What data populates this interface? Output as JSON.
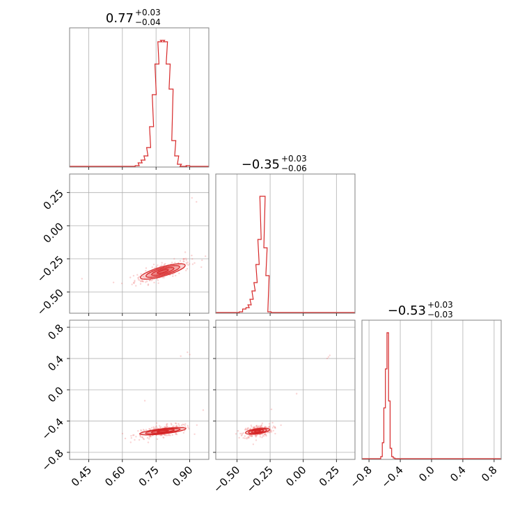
{
  "colors": {
    "series": "#d62728",
    "grid": "#b0b0b0",
    "frame": "#808080",
    "text": "#000000",
    "scatter": "#f08080"
  },
  "chart_data": {
    "type": "corner",
    "parameters": 3,
    "grid": true,
    "titles": [
      {
        "median": "0.77",
        "plus": "+0.03",
        "minus": "−0.04"
      },
      {
        "median": "−0.35",
        "plus": "+0.03",
        "minus": "−0.06"
      },
      {
        "median": "−0.53",
        "plus": "+0.03",
        "minus": "−0.03"
      }
    ],
    "ranges": [
      [
        0.365,
        0.985
      ],
      [
        -0.66,
        0.39
      ],
      [
        -0.89,
        0.89
      ]
    ],
    "ticks": [
      {
        "values": [
          0.45,
          0.6,
          0.75,
          0.9
        ],
        "labels": [
          "0.45",
          "0.60",
          "0.75",
          "0.90"
        ]
      },
      {
        "values": [
          -0.5,
          -0.25,
          0.0,
          0.25
        ],
        "labels": [
          "−0.50",
          "−0.25",
          "0.00",
          "0.25"
        ]
      },
      {
        "values": [
          -0.8,
          -0.4,
          0.0,
          0.4,
          0.8
        ],
        "labels": [
          "−0.8",
          "−0.4",
          "0.0",
          "0.4",
          "0.8"
        ]
      }
    ],
    "histograms": [
      {
        "name": "",
        "x": [
          0.63,
          0.648,
          0.666,
          0.679,
          0.692,
          0.705,
          0.717,
          0.73,
          0.742,
          0.754,
          0.767,
          0.779,
          0.792,
          0.804,
          0.817,
          0.829,
          0.842,
          0.854,
          0.866,
          0.879,
          0.891
        ],
        "y": [
          0.005,
          0.005,
          0.01,
          0.03,
          0.05,
          0.08,
          0.14,
          0.29,
          0.52,
          0.74,
          0.9,
          0.91,
          0.9,
          0.74,
          0.56,
          0.19,
          0.08,
          0.02,
          0.005,
          0.005,
          0.01
        ]
      },
      {
        "name": "",
        "x": [
          -0.47,
          -0.445,
          -0.42,
          -0.405,
          -0.39,
          -0.375,
          -0.36,
          -0.345,
          -0.33,
          -0.315,
          -0.3,
          -0.285,
          -0.27,
          -0.255
        ],
        "y": [
          0.01,
          0.03,
          0.04,
          0.06,
          0.1,
          0.16,
          0.22,
          0.35,
          0.53,
          0.84,
          0.84,
          0.47,
          0.27,
          0.01
        ]
      },
      {
        "name": "",
        "x": [
          -0.64,
          -0.62,
          -0.6,
          -0.58,
          -0.56,
          -0.54,
          -0.52,
          -0.5,
          -0.48
        ],
        "y": [
          0.02,
          0.12,
          0.37,
          0.65,
          0.91,
          0.42,
          0.08,
          0.02,
          0.01
        ]
      }
    ],
    "pairs": [
      {
        "row": 1,
        "col": 0,
        "center": [
          0.78,
          -0.345
        ],
        "spread": [
          0.045,
          0.032
        ],
        "rho": 0.75,
        "outliers": [
          [
            0.93,
            0.18
          ],
          [
            0.91,
            0.21
          ],
          [
            0.97,
            -0.23
          ],
          [
            0.42,
            -0.4
          ],
          [
            0.88,
            -0.2
          ]
        ]
      },
      {
        "row": 2,
        "col": 0,
        "center": [
          0.78,
          -0.53
        ],
        "spread": [
          0.045,
          0.03
        ],
        "rho": 0.55,
        "outliers": [
          [
            0.7,
            -0.14
          ],
          [
            0.86,
            0.43
          ],
          [
            0.9,
            0.45
          ],
          [
            0.96,
            -0.26
          ],
          [
            0.89,
            0.48
          ]
        ]
      },
      {
        "row": 2,
        "col": 1,
        "center": [
          -0.345,
          -0.53
        ],
        "spread": [
          0.04,
          0.03
        ],
        "rho": 0.35,
        "outliers": [
          [
            0.18,
            0.4
          ],
          [
            0.2,
            0.44
          ],
          [
            -0.24,
            -0.25
          ],
          [
            -0.05,
            -0.05
          ],
          [
            0.19,
            0.42
          ]
        ]
      }
    ]
  }
}
